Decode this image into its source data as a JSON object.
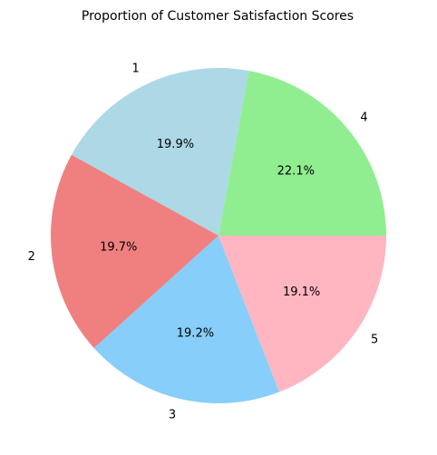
{
  "chart_data": {
    "type": "pie",
    "title": "Proportion of Customer Satisfaction Scores",
    "start_angle_deg": 0,
    "direction": "counterclockwise",
    "slices": [
      {
        "label": "4",
        "value": 22.1,
        "pct_label": "22.1%",
        "color": "#90ee90"
      },
      {
        "label": "1",
        "value": 19.9,
        "pct_label": "19.9%",
        "color": "#add8e6"
      },
      {
        "label": "2",
        "value": 19.7,
        "pct_label": "19.7%",
        "color": "#f08080"
      },
      {
        "label": "3",
        "value": 19.2,
        "pct_label": "19.2%",
        "color": "#87cefa"
      },
      {
        "label": "5",
        "value": 19.1,
        "pct_label": "19.1%",
        "color": "#ffb6c1"
      }
    ]
  }
}
